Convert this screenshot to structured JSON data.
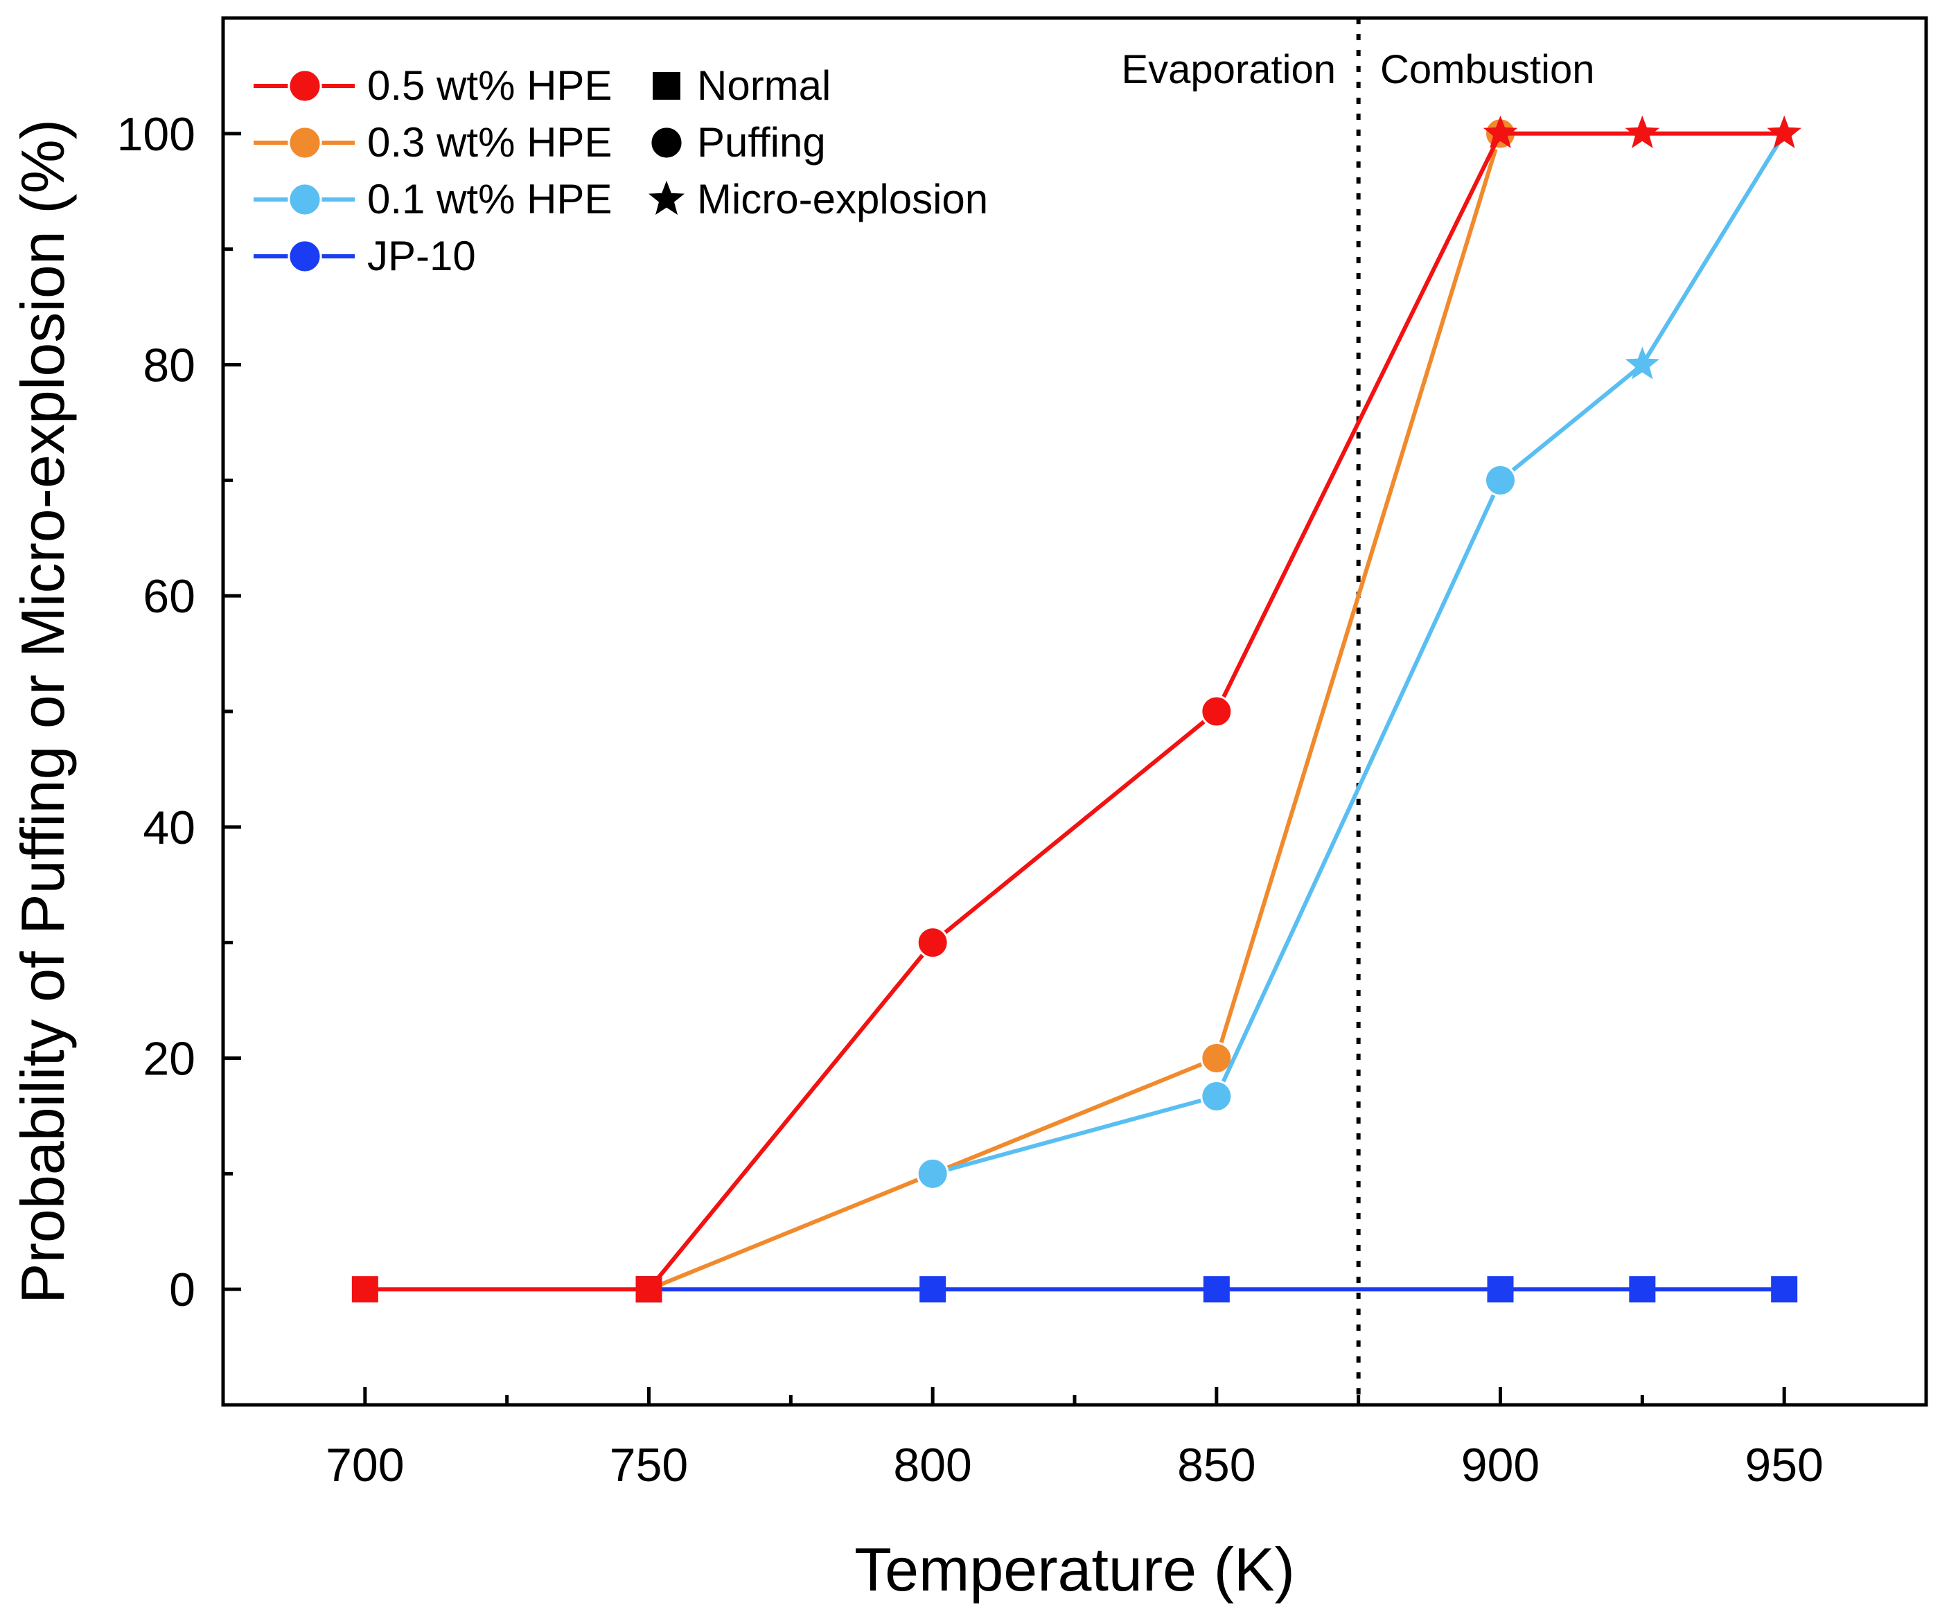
{
  "chart_data": {
    "type": "line",
    "xlabel": "Temperature (K)",
    "ylabel": "Probability of Puffing or Micro-explosion (%)",
    "xlim": [
      675,
      975
    ],
    "ylim": [
      -10,
      110
    ],
    "xticks": [
      700,
      750,
      800,
      850,
      900,
      950
    ],
    "xticks_minor": [
      725,
      775,
      825,
      875,
      925
    ],
    "yticks": [
      0,
      20,
      40,
      60,
      80,
      100
    ],
    "yticks_minor": [
      -10,
      10,
      30,
      50,
      70,
      90
    ],
    "divider": {
      "x": 875,
      "left_label": "Evaporation",
      "right_label": "Combustion"
    },
    "colors": {
      "axis": "#000000"
    },
    "series": [
      {
        "name": "0.3 wt% HPE",
        "color": "#f08a2c",
        "x": [
          750,
          800,
          850,
          900
        ],
        "y": [
          0,
          10,
          20,
          100
        ],
        "markers": [
          "square",
          "circle",
          "circle",
          "circle"
        ]
      },
      {
        "name": "0.1 wt% HPE",
        "color": "#59bef2",
        "x": [
          800,
          850,
          900,
          925,
          950
        ],
        "y": [
          10,
          16.7,
          70,
          80,
          100
        ],
        "markers": [
          "circle",
          "circle",
          "circle",
          "star",
          "star"
        ]
      },
      {
        "name": "JP-10",
        "color": "#1a3cf2",
        "x": [
          750,
          800,
          850,
          900,
          925,
          950
        ],
        "y": [
          0,
          0,
          0,
          0,
          0,
          0
        ],
        "markers": [
          "square",
          "square",
          "square",
          "square",
          "square",
          "square"
        ]
      },
      {
        "name": "0.5 wt% HPE",
        "color": "#f21212",
        "x": [
          700,
          750,
          800,
          850,
          900,
          925,
          950
        ],
        "y": [
          0,
          0,
          30,
          50,
          100,
          100,
          100
        ],
        "markers": [
          "square",
          "square",
          "circle",
          "circle",
          "star",
          "star",
          "star"
        ]
      }
    ],
    "legend": {
      "placement": "top-left",
      "series_entries": [
        {
          "label": "0.5 wt% HPE",
          "color": "#f21212"
        },
        {
          "label": "0.3 wt% HPE",
          "color": "#f08a2c"
        },
        {
          "label": "0.1 wt% HPE",
          "color": "#59bef2"
        },
        {
          "label": "JP-10",
          "color": "#1a3cf2"
        }
      ],
      "marker_entries": [
        {
          "label": "Normal",
          "shape": "square"
        },
        {
          "label": "Puffing",
          "shape": "circle"
        },
        {
          "label": "Micro-explosion",
          "shape": "star"
        }
      ]
    }
  }
}
